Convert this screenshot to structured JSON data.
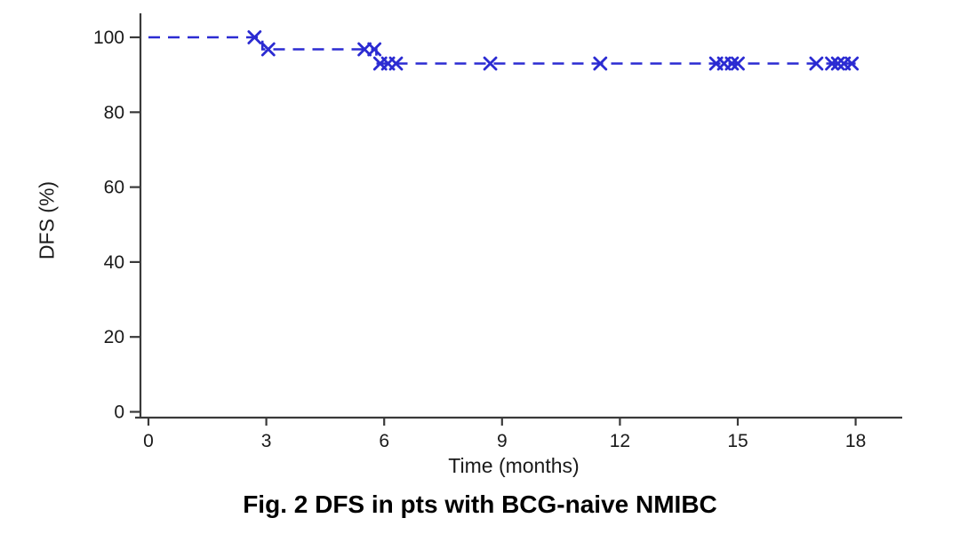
{
  "figure": {
    "caption": "Fig. 2 DFS in pts with BCG-naive NMIBC"
  },
  "chart_data": {
    "type": "line",
    "subtype": "kaplan-meier-step",
    "title": "Fig. 2 DFS in pts with BCG-naive NMIBC",
    "xlabel": "Time (months)",
    "ylabel": "DFS (%)",
    "xlim": [
      0,
      19.2
    ],
    "ylim": [
      0,
      100
    ],
    "xticks": [
      0,
      3,
      6,
      9,
      12,
      15,
      18
    ],
    "yticks": [
      0,
      20,
      40,
      60,
      80,
      100
    ],
    "grid": false,
    "legend": "none",
    "line_color": "#2b2bd2",
    "line_style": "dashed",
    "marker": "x",
    "axis_color": "#3a3a3a",
    "text_color": "#1a1a1a",
    "series": [
      {
        "name": "DFS",
        "step_points": [
          [
            0,
            100
          ],
          [
            2.9,
            100
          ],
          [
            2.9,
            96.8
          ],
          [
            5.8,
            96.8
          ],
          [
            5.8,
            93
          ],
          [
            18.0,
            93
          ]
        ],
        "censor_marks": [
          [
            2.7,
            100
          ],
          [
            3.05,
            96.8
          ],
          [
            5.5,
            96.8
          ],
          [
            5.75,
            96.8
          ],
          [
            5.9,
            93
          ],
          [
            6.1,
            93
          ],
          [
            6.3,
            93
          ],
          [
            8.7,
            93
          ],
          [
            11.5,
            93
          ],
          [
            14.45,
            93
          ],
          [
            14.65,
            93
          ],
          [
            14.85,
            93
          ],
          [
            15.0,
            93
          ],
          [
            17.0,
            93
          ],
          [
            17.4,
            93
          ],
          [
            17.55,
            93
          ],
          [
            17.7,
            93
          ],
          [
            17.9,
            93
          ]
        ]
      }
    ]
  }
}
